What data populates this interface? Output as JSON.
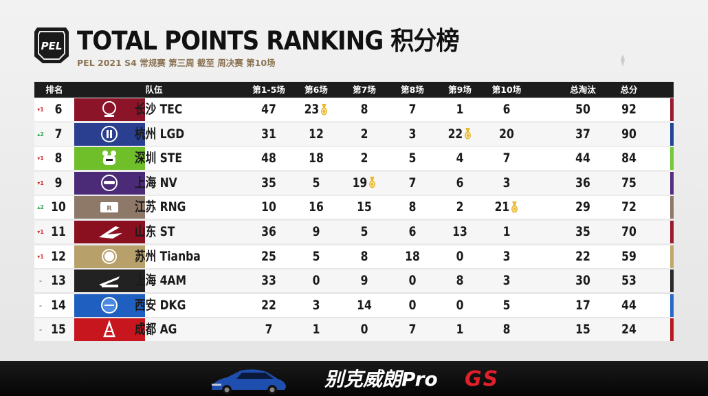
{
  "header": {
    "title": "TOTAL POINTS RANKING 积分榜",
    "subtitle": "PEL 2021 S4 常规赛 第三周 截至 周决赛 第10场",
    "logo_text": "PEL"
  },
  "table": {
    "columns": {
      "rank": "排名",
      "team": "队伍",
      "m1_5": "第1-5场",
      "m6": "第6场",
      "m7": "第7场",
      "m8": "第8场",
      "m9": "第9场",
      "m10": "第10场",
      "elims": "总淘汰",
      "total": "总分"
    },
    "rows": [
      {
        "change": "▾1",
        "change_dir": "down",
        "rank": "6",
        "team": "长沙 TEC",
        "m1_5": "47",
        "m6": "23",
        "m7": "8",
        "m8": "7",
        "m9": "1",
        "m10": "6",
        "elims": "50",
        "total": "92",
        "medal": "m6",
        "logo_color": "#8b1428",
        "edge_color": "#9c1a2e",
        "icon": "tec-logo"
      },
      {
        "change": "▴2",
        "change_dir": "up",
        "rank": "7",
        "team": "杭州 LGD",
        "m1_5": "31",
        "m6": "12",
        "m7": "2",
        "m8": "3",
        "m9": "22",
        "m10": "20",
        "elims": "37",
        "total": "90",
        "medal": "m9",
        "logo_color": "#2a3f8f",
        "edge_color": "#24449a",
        "icon": "lgd-logo"
      },
      {
        "change": "▾1",
        "change_dir": "down",
        "rank": "8",
        "team": "深圳 STE",
        "m1_5": "48",
        "m6": "18",
        "m7": "2",
        "m8": "5",
        "m9": "4",
        "m10": "7",
        "elims": "44",
        "total": "84",
        "medal": "",
        "logo_color": "#6fbf2a",
        "edge_color": "#74c83a",
        "icon": "ste-logo"
      },
      {
        "change": "▾1",
        "change_dir": "down",
        "rank": "9",
        "team": "上海 NV",
        "m1_5": "35",
        "m6": "5",
        "m7": "19",
        "m8": "7",
        "m9": "6",
        "m10": "3",
        "elims": "36",
        "total": "75",
        "medal": "m7",
        "logo_color": "#4b2a78",
        "edge_color": "#55307f",
        "icon": "nv-logo"
      },
      {
        "change": "▴2",
        "change_dir": "up",
        "rank": "10",
        "team": "江苏 RNG",
        "m1_5": "10",
        "m6": "16",
        "m7": "15",
        "m8": "8",
        "m9": "2",
        "m10": "21",
        "elims": "29",
        "total": "72",
        "medal": "m10",
        "logo_color": "#8e7868",
        "edge_color": "#8e7868",
        "icon": "rng-logo"
      },
      {
        "change": "▾1",
        "change_dir": "down",
        "rank": "11",
        "team": "山东 ST",
        "m1_5": "36",
        "m6": "9",
        "m7": "5",
        "m8": "6",
        "m9": "13",
        "m10": "1",
        "elims": "35",
        "total": "70",
        "medal": "",
        "logo_color": "#8a1020",
        "edge_color": "#9c1a2e",
        "icon": "st-logo"
      },
      {
        "change": "▾1",
        "change_dir": "down",
        "rank": "12",
        "team": "苏州 Tianba",
        "m1_5": "25",
        "m6": "5",
        "m7": "8",
        "m8": "18",
        "m9": "0",
        "m10": "3",
        "elims": "22",
        "total": "59",
        "medal": "",
        "logo_color": "#b8a06a",
        "edge_color": "#c0a86c",
        "icon": "tianba-logo"
      },
      {
        "change": "–",
        "change_dir": "same",
        "rank": "13",
        "team": "上海 4AM",
        "m1_5": "33",
        "m6": "0",
        "m7": "9",
        "m8": "0",
        "m9": "8",
        "m10": "3",
        "elims": "30",
        "total": "53",
        "medal": "",
        "logo_color": "#222222",
        "edge_color": "#2a2a2a",
        "icon": "4am-logo"
      },
      {
        "change": "–",
        "change_dir": "same",
        "rank": "14",
        "team": "西安 DKG",
        "m1_5": "22",
        "m6": "3",
        "m7": "14",
        "m8": "0",
        "m9": "0",
        "m10": "5",
        "elims": "17",
        "total": "44",
        "medal": "",
        "logo_color": "#1e5fc0",
        "edge_color": "#2a68c8",
        "icon": "dkg-logo"
      },
      {
        "change": "–",
        "change_dir": "same",
        "rank": "15",
        "team": "成都 AG",
        "m1_5": "7",
        "m6": "1",
        "m7": "0",
        "m8": "7",
        "m9": "1",
        "m10": "8",
        "elims": "15",
        "total": "24",
        "medal": "",
        "logo_color": "#c8161e",
        "edge_color": "#b81a22",
        "icon": "ag-logo"
      }
    ]
  },
  "sponsor": {
    "text": "别克威朗Pro",
    "gs": "GS"
  },
  "colors": {
    "header_bg": "#1c1c1c",
    "subtitle": "#8b7352",
    "medal": "#e8b830",
    "up": "#2ca84a",
    "down": "#d03030"
  }
}
